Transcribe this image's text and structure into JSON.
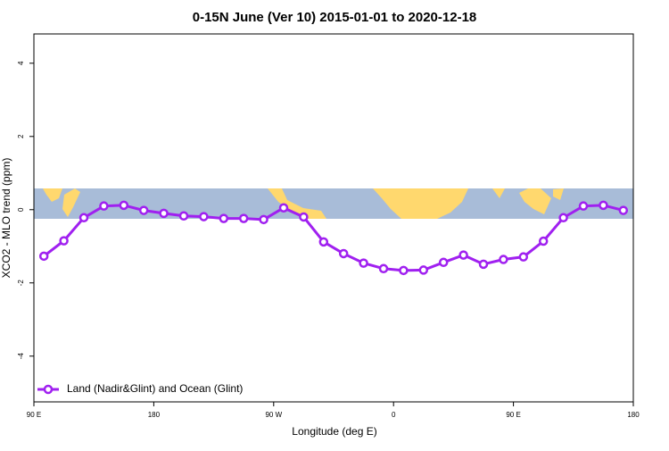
{
  "chart_data": {
    "type": "line",
    "title": "0-15N June (Ver 10)   2015-01-01 to 2020-12-18",
    "x_label": "Longitude (deg E)",
    "y_label": "XCO2 - MLO trend (ppm)",
    "x": [
      97.5,
      112.5,
      127.5,
      142.5,
      157.5,
      172.5,
      187.5,
      202.5,
      217.5,
      232.5,
      247.5,
      262.5,
      277.5,
      292.5,
      307.5,
      322.5,
      337.5,
      352.5,
      367.5,
      382.5,
      397.5,
      412.5,
      427.5,
      442.5,
      457.5,
      472.5,
      487.5,
      502.5,
      517.5,
      532.5
    ],
    "series": [
      {
        "name": "Land (Nadir&Glint) and Ocean (Glint)",
        "color": "#a020f0",
        "values": [
          -1.27,
          -0.85,
          -0.22,
          0.1,
          0.12,
          -0.02,
          -0.1,
          -0.17,
          -0.19,
          -0.24,
          -0.24,
          -0.27,
          0.05,
          -0.2,
          -0.88,
          -1.2,
          -1.46,
          -1.61,
          -1.66,
          -1.65,
          -1.44,
          -1.24,
          -1.49,
          -1.36,
          -1.29,
          -0.86,
          -0.22,
          0.1,
          0.12,
          -0.02
        ]
      }
    ],
    "xlim": [
      90,
      540
    ],
    "xticks": [
      {
        "value": 90,
        "label": "90 E"
      },
      180,
      {
        "value": 270,
        "label": "90 W"
      },
      {
        "value": 360,
        "label": "0"
      },
      {
        "value": 450,
        "label": "90 E"
      },
      {
        "value": 540,
        "label": "180"
      }
    ],
    "ylim": [
      -5.25,
      4.8
    ],
    "yticks": [
      -4,
      -2,
      0,
      2,
      4
    ],
    "legend": "bottom-left"
  }
}
